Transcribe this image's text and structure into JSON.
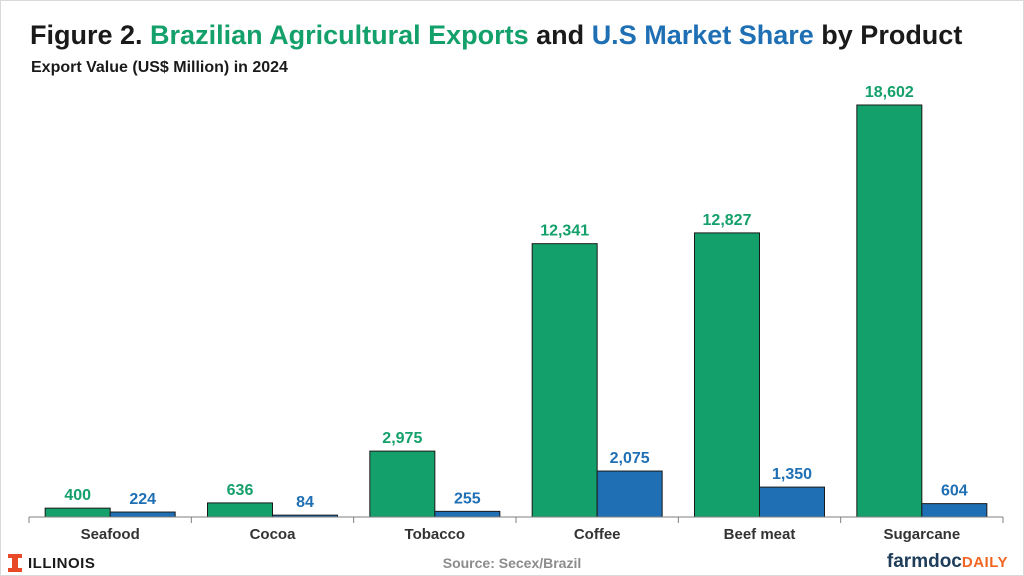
{
  "title": {
    "prefix": "Figure 2.",
    "part1": "Brazilian Agricultural Exports",
    "connector": "and",
    "part2": "U.S Market Share",
    "suffix": "by Product"
  },
  "subtitle": "Export Value (US$ Million) in 2024",
  "source": "Source: Secex/Brazil",
  "logos": {
    "illinois": "ILLINOIS",
    "farmdoc_main": "farmdoc",
    "farmdoc_sub": "DAILY"
  },
  "colors": {
    "brazil": "#14a06b",
    "us": "#1f6fb4",
    "brazil_label": "#14a06b",
    "us_label": "#1f6fb4",
    "illinois_orange": "#e84a27"
  },
  "chart_data": {
    "type": "bar",
    "title": "Figure 2. Brazilian Agricultural Exports and U.S Market Share by Product",
    "subtitle": "Export Value (US$ Million) in 2024",
    "categories": [
      "Seafood",
      "Cocoa",
      "Tobacco",
      "Coffee",
      "Beef meat",
      "Sugarcane"
    ],
    "series": [
      {
        "name": "Brazilian Agricultural Exports",
        "values": [
          400,
          636,
          2975,
          12341,
          12827,
          18602
        ],
        "labels": [
          "400",
          "636",
          "2,975",
          "12,341",
          "12,827",
          "18,602"
        ]
      },
      {
        "name": "U.S Market Share",
        "values": [
          224,
          84,
          255,
          2075,
          1350,
          604
        ],
        "labels": [
          "224",
          "84",
          "255",
          "2,075",
          "1,350",
          "604"
        ]
      }
    ],
    "ylim": [
      0,
      18602
    ],
    "grid": false,
    "legend": "none"
  }
}
